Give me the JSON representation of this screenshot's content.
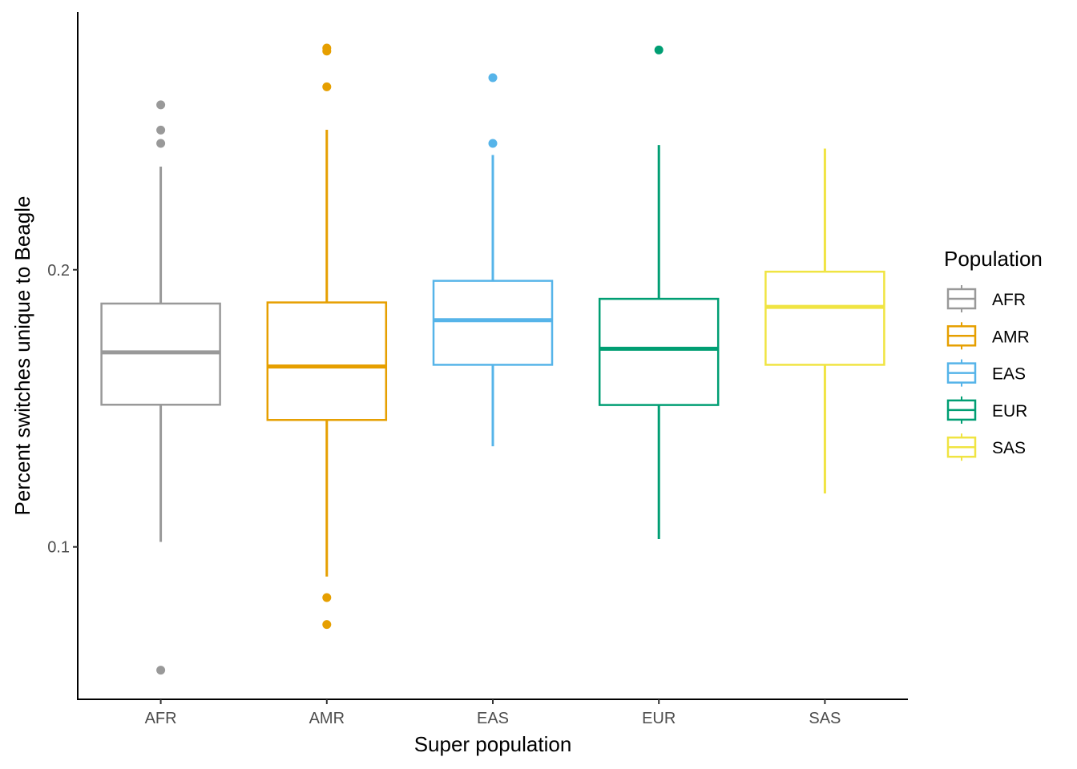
{
  "chart_data": {
    "type": "boxplot",
    "xlabel": "Super population",
    "ylabel": "Percent switches unique to Beagle",
    "ylim": [
      0.045,
      0.293
    ],
    "yticks": [
      0.1,
      0.2
    ],
    "ytick_labels": [
      "0.1",
      "0.2"
    ],
    "categories": [
      "AFR",
      "AMR",
      "EAS",
      "EUR",
      "SAS"
    ],
    "legend": {
      "title": "Population",
      "position": "right"
    },
    "grid": false,
    "boxes": [
      {
        "name": "AFR",
        "color": "#999999",
        "whisker_low": 0.1018,
        "q1": 0.1513,
        "median": 0.1702,
        "q3": 0.1878,
        "whisker_high": 0.2372,
        "outliers": [
          0.2595,
          0.2504,
          0.2456,
          0.0555
        ]
      },
      {
        "name": "AMR",
        "color": "#E69F00",
        "whisker_low": 0.0893,
        "q1": 0.1458,
        "median": 0.1651,
        "q3": 0.1882,
        "whisker_high": 0.2505,
        "outliers": [
          0.28,
          0.2789,
          0.266,
          0.0817,
          0.072
        ]
      },
      {
        "name": "EAS",
        "color": "#56B4E9",
        "whisker_low": 0.1363,
        "q1": 0.1657,
        "median": 0.1818,
        "q3": 0.196,
        "whisker_high": 0.2414,
        "outliers": [
          0.2693,
          0.2456
        ]
      },
      {
        "name": "EUR",
        "color": "#009E73",
        "whisker_low": 0.1028,
        "q1": 0.1512,
        "median": 0.1715,
        "q3": 0.1895,
        "whisker_high": 0.245,
        "outliers": [
          0.2793
        ]
      },
      {
        "name": "SAS",
        "color": "#F0E442",
        "whisker_low": 0.1193,
        "q1": 0.1657,
        "median": 0.1866,
        "q3": 0.1993,
        "whisker_high": 0.2437,
        "outliers": []
      }
    ]
  }
}
